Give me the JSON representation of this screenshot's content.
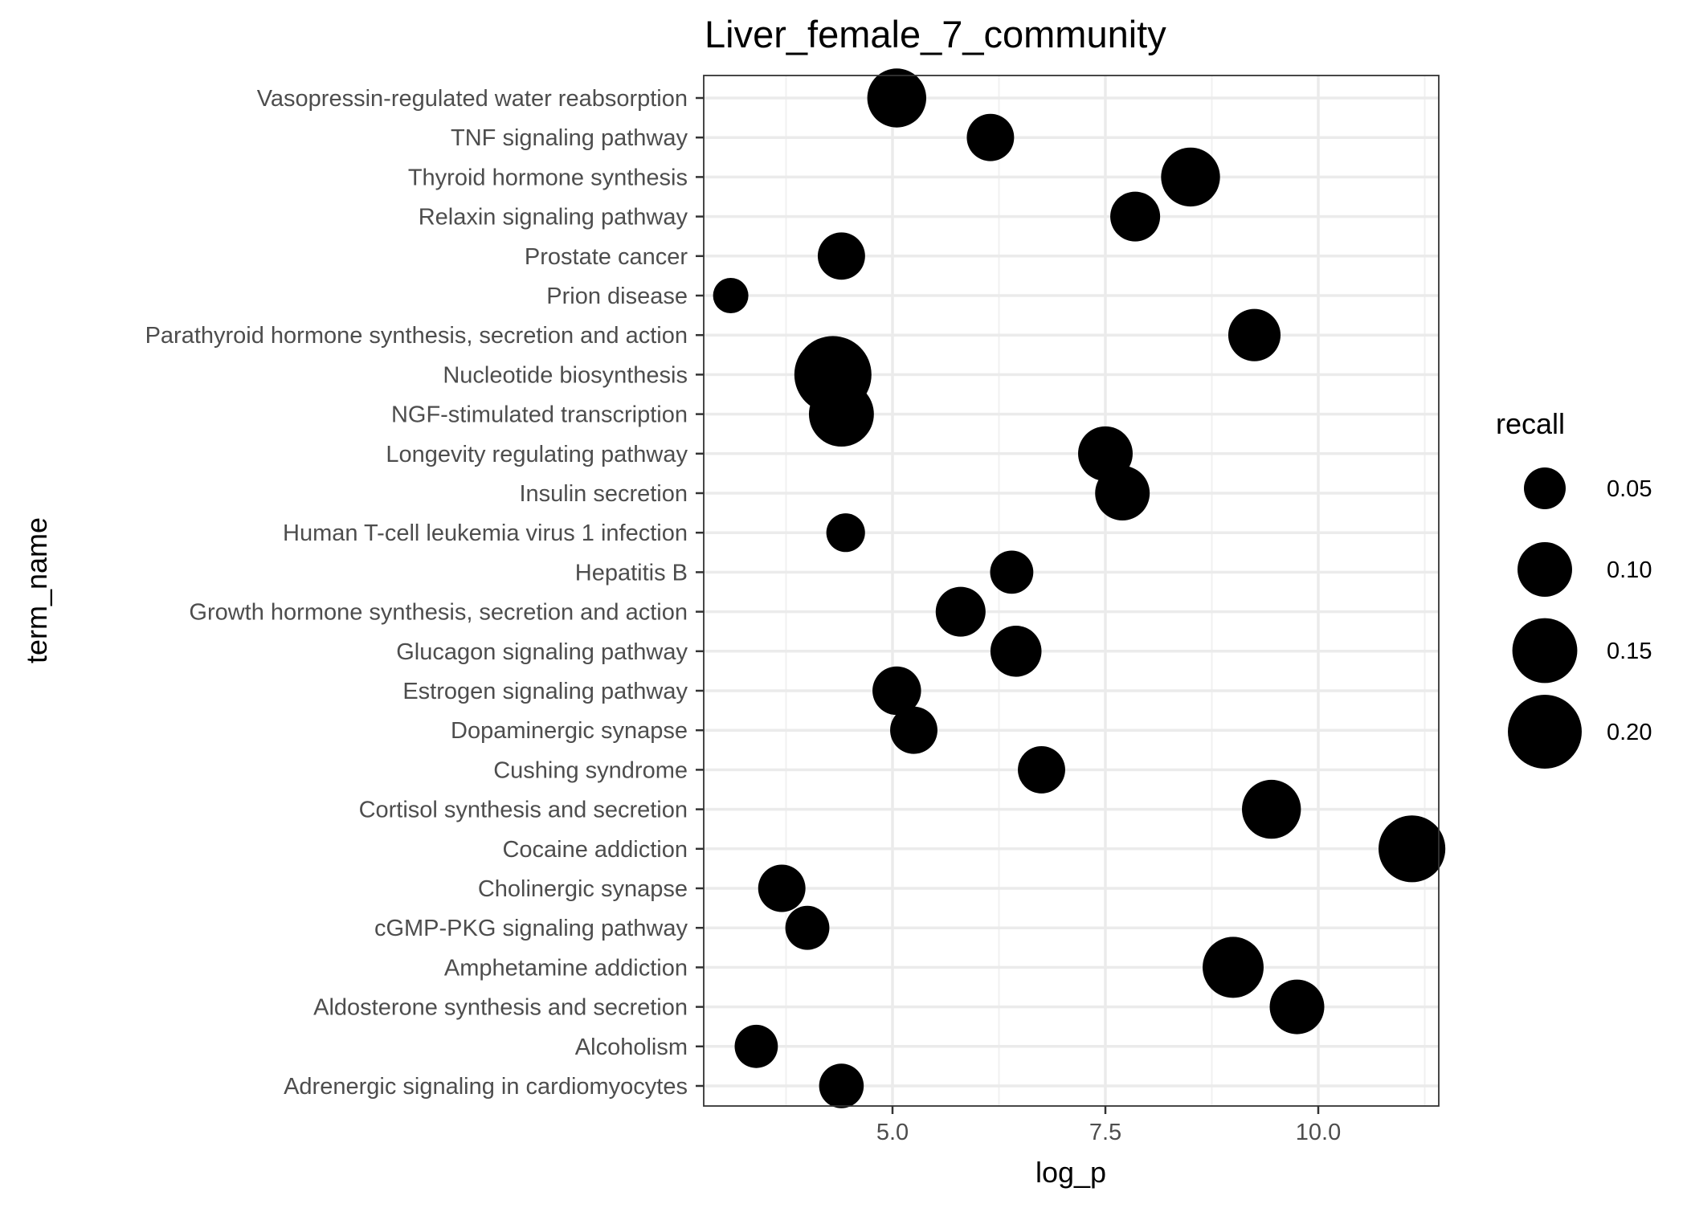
{
  "chart_data": {
    "type": "scatter",
    "title": "Liver_female_7_community",
    "xlabel": "log_p",
    "ylabel": "term_name",
    "xlim": [
      2.55,
      11.45
    ],
    "xticks": [
      5.0,
      7.5,
      10.0
    ],
    "xtick_labels": [
      "5.0",
      "7.5",
      "10.0"
    ],
    "grid": true,
    "marker_color": "#000000",
    "size_variable": "recall",
    "size_range": [
      0.03,
      0.22
    ],
    "categories": [
      "Adrenergic signaling in cardiomyocytes",
      "Alcoholism",
      "Aldosterone synthesis and secretion",
      "Amphetamine addiction",
      "cGMP-PKG signaling pathway",
      "Cholinergic synapse",
      "Cocaine addiction",
      "Cortisol synthesis and secretion",
      "Cushing syndrome",
      "Dopaminergic synapse",
      "Estrogen signaling pathway",
      "Glucagon signaling pathway",
      "Growth hormone synthesis, secretion and action",
      "Hepatitis B",
      "Human T-cell leukemia virus 1 infection",
      "Insulin secretion",
      "Longevity regulating pathway",
      "NGF-stimulated transcription",
      "Nucleotide biosynthesis",
      "Parathyroid hormone synthesis, secretion and action",
      "Prion disease",
      "Prostate cancer",
      "Relaxin signaling pathway",
      "Thyroid hormone synthesis",
      "TNF signaling pathway",
      "Vasopressin-regulated water reabsorption"
    ],
    "points": [
      {
        "term": "Adrenergic signaling in cardiomyocytes",
        "log_p": 4.4,
        "recall": 0.06
      },
      {
        "term": "Alcoholism",
        "log_p": 3.4,
        "recall": 0.055
      },
      {
        "term": "Aldosterone synthesis and secretion",
        "log_p": 9.75,
        "recall": 0.1
      },
      {
        "term": "Amphetamine addiction",
        "log_p": 9.0,
        "recall": 0.13
      },
      {
        "term": "cGMP-PKG signaling pathway",
        "log_p": 4.0,
        "recall": 0.058
      },
      {
        "term": "Cholinergic synapse",
        "log_p": 3.7,
        "recall": 0.07
      },
      {
        "term": "Cocaine addiction",
        "log_p": 11.1,
        "recall": 0.16
      },
      {
        "term": "Cortisol synthesis and secretion",
        "log_p": 9.45,
        "recall": 0.12
      },
      {
        "term": "Cushing syndrome",
        "log_p": 6.75,
        "recall": 0.07
      },
      {
        "term": "Dopaminergic synapse",
        "log_p": 5.25,
        "recall": 0.07
      },
      {
        "term": "Estrogen signaling pathway",
        "log_p": 5.05,
        "recall": 0.075
      },
      {
        "term": "Glucagon signaling pathway",
        "log_p": 6.45,
        "recall": 0.085
      },
      {
        "term": "Growth hormone synthesis, secretion and action",
        "log_p": 5.8,
        "recall": 0.08
      },
      {
        "term": "Hepatitis B",
        "log_p": 6.4,
        "recall": 0.055
      },
      {
        "term": "Human T-cell leukemia virus 1 infection",
        "log_p": 4.45,
        "recall": 0.04
      },
      {
        "term": "Insulin secretion",
        "log_p": 7.7,
        "recall": 0.1
      },
      {
        "term": "Longevity regulating pathway",
        "log_p": 7.5,
        "recall": 0.1
      },
      {
        "term": "NGF-stimulated transcription",
        "log_p": 4.4,
        "recall": 0.15
      },
      {
        "term": "Nucleotide biosynthesis",
        "log_p": 4.3,
        "recall": 0.22
      },
      {
        "term": "Parathyroid hormone synthesis, secretion and action",
        "log_p": 9.25,
        "recall": 0.09
      },
      {
        "term": "Prion disease",
        "log_p": 3.1,
        "recall": 0.03
      },
      {
        "term": "Prostate cancer",
        "log_p": 4.4,
        "recall": 0.07
      },
      {
        "term": "Relaxin signaling pathway",
        "log_p": 7.85,
        "recall": 0.08
      },
      {
        "term": "Thyroid hormone synthesis",
        "log_p": 8.5,
        "recall": 0.12
      },
      {
        "term": "TNF signaling pathway",
        "log_p": 6.15,
        "recall": 0.07
      },
      {
        "term": "Vasopressin-regulated water reabsorption",
        "log_p": 5.05,
        "recall": 0.12
      }
    ],
    "legend": {
      "title": "recall",
      "position": "right",
      "values": [
        0.05,
        0.1,
        0.15,
        0.2
      ],
      "labels": [
        "0.05",
        "0.10",
        "0.15",
        "0.20"
      ]
    }
  }
}
